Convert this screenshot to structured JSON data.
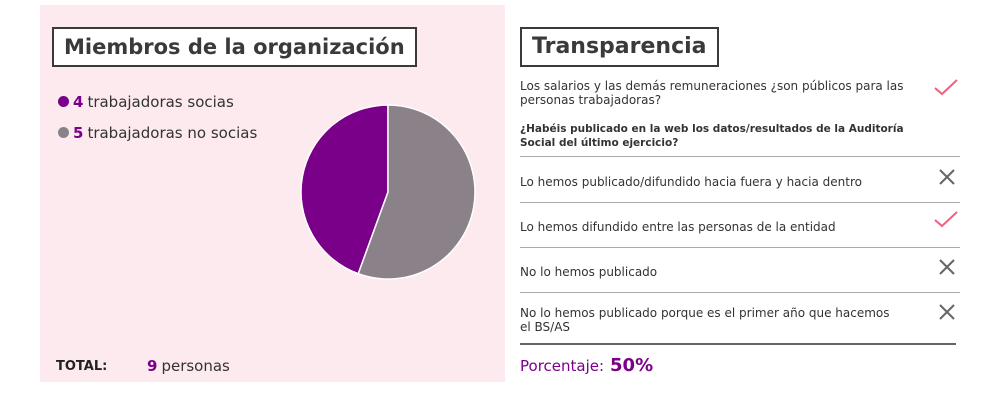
{
  "members": {
    "title": "Miembros de la organización",
    "legend": [
      {
        "count": "4",
        "label": "trabajadoras socias",
        "color": "#7a0089"
      },
      {
        "count": "5",
        "label": "trabajadoras no socias",
        "color": "#8a8288"
      }
    ],
    "total_label": "TOTAL:",
    "total_count": "9",
    "total_unit": "personas"
  },
  "chart_data": {
    "type": "pie",
    "labels": [
      "trabajadoras socias",
      "trabajadoras no socias"
    ],
    "values": [
      4,
      5
    ],
    "colors": [
      "#7a0089",
      "#8a8288"
    ]
  },
  "transparency": {
    "title": "Transparencia",
    "q1": "Los salarios y las demás remuneraciones ¿son públicos para las personas trabajadoras?",
    "q1_mark": "check",
    "q2": "¿Habéis publicado en la web los datos/resultados de la Auditoría Social del último ejercicio?",
    "options": [
      {
        "text": "Lo hemos publicado/difundido hacia fuera y hacia dentro",
        "mark": "cross"
      },
      {
        "text": "Lo hemos difundido entre las personas de la entidad",
        "mark": "check"
      },
      {
        "text": "No lo hemos publicado",
        "mark": "cross"
      },
      {
        "text": "No lo hemos publicado porque es el primer año que hacemos el BS/AS",
        "mark": "cross"
      }
    ],
    "percentage_label": "Porcentaje:",
    "percentage_value": "50%"
  },
  "colors": {
    "accent": "#7a0089",
    "check": "#f0607f",
    "cross": "#666666",
    "panel_bg": "#fdeaef"
  }
}
